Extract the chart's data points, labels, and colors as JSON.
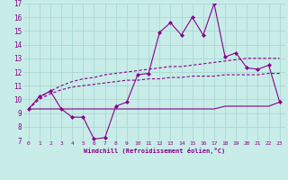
{
  "xlabel": "Windchill (Refroidissement éolien,°C)",
  "bg_color": "#c8ece8",
  "grid_color": "#aad8d4",
  "line_color": "#880088",
  "xlim": [
    -0.5,
    23.5
  ],
  "ylim": [
    7,
    17
  ],
  "xticks": [
    0,
    1,
    2,
    3,
    4,
    5,
    6,
    7,
    8,
    9,
    10,
    11,
    12,
    13,
    14,
    15,
    16,
    17,
    18,
    19,
    20,
    21,
    22,
    23
  ],
  "yticks": [
    7,
    8,
    9,
    10,
    11,
    12,
    13,
    14,
    15,
    16,
    17
  ],
  "line1_x": [
    0,
    1,
    2,
    3,
    4,
    5,
    6,
    7,
    8,
    9,
    10,
    11,
    12,
    13,
    14,
    15,
    16,
    17,
    18,
    19,
    20,
    21,
    22,
    23
  ],
  "line1_y": [
    9.3,
    10.2,
    10.6,
    9.3,
    8.7,
    8.7,
    7.1,
    7.2,
    9.5,
    9.8,
    11.8,
    11.9,
    14.9,
    15.6,
    14.7,
    16.0,
    14.7,
    17.0,
    13.1,
    13.4,
    12.3,
    12.2,
    12.5,
    9.8
  ],
  "line2_x": [
    0,
    1,
    2,
    3,
    4,
    5,
    6,
    7,
    8,
    9,
    10,
    11,
    12,
    13,
    14,
    15,
    16,
    17,
    18,
    19,
    20,
    21,
    22,
    23
  ],
  "line2_y": [
    9.3,
    10.1,
    10.6,
    11.0,
    11.3,
    11.5,
    11.6,
    11.8,
    11.9,
    12.0,
    12.1,
    12.2,
    12.3,
    12.4,
    12.4,
    12.5,
    12.6,
    12.7,
    12.8,
    12.9,
    13.0,
    13.0,
    13.0,
    13.0
  ],
  "line3_x": [
    0,
    1,
    2,
    3,
    4,
    5,
    6,
    7,
    8,
    9,
    10,
    11,
    12,
    13,
    14,
    15,
    16,
    17,
    18,
    19,
    20,
    21,
    22,
    23
  ],
  "line3_y": [
    9.3,
    10.0,
    10.4,
    10.7,
    10.9,
    11.0,
    11.1,
    11.2,
    11.3,
    11.4,
    11.4,
    11.5,
    11.5,
    11.6,
    11.6,
    11.7,
    11.7,
    11.7,
    11.8,
    11.8,
    11.8,
    11.8,
    11.9,
    11.9
  ],
  "line4_x": [
    0,
    1,
    2,
    3,
    4,
    5,
    6,
    7,
    8,
    9,
    10,
    11,
    12,
    13,
    14,
    15,
    16,
    17,
    18,
    19,
    20,
    21,
    22,
    23
  ],
  "line4_y": [
    9.3,
    9.3,
    9.3,
    9.3,
    9.3,
    9.3,
    9.3,
    9.3,
    9.3,
    9.3,
    9.3,
    9.3,
    9.3,
    9.3,
    9.3,
    9.3,
    9.3,
    9.3,
    9.5,
    9.5,
    9.5,
    9.5,
    9.5,
    9.8
  ]
}
